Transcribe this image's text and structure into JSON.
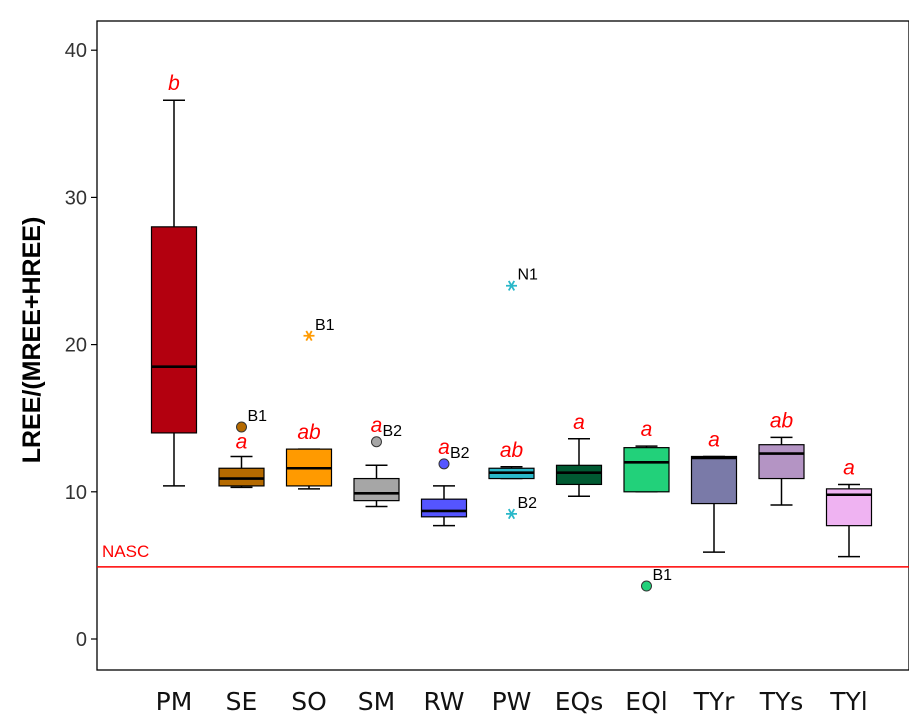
{
  "chart_data": {
    "type": "box",
    "ylabel": "LREE/(MREE+HREE)",
    "ylim": [
      -2,
      42
    ],
    "yticks": [
      0,
      10,
      20,
      30,
      40
    ],
    "ytick_labels": [
      "0",
      "10",
      "20",
      "30",
      "40"
    ],
    "grid": false,
    "reference_line": {
      "label": "NASC",
      "value": 4.9,
      "color": "#ff0000"
    },
    "boxes": [
      {
        "category": "PM",
        "min": 10.4,
        "q1": 14.0,
        "median": 18.5,
        "q3": 28.0,
        "max": 36.6,
        "color": "#b3000f",
        "letter": "b",
        "outliers": []
      },
      {
        "category": "SE",
        "min": 10.3,
        "q1": 10.4,
        "median": 10.9,
        "q3": 11.6,
        "max": 12.4,
        "color": "#b56a00",
        "letter": "a",
        "outliers": [
          {
            "value": 14.4,
            "label": "B1",
            "marker": "circle"
          }
        ]
      },
      {
        "category": "SO",
        "min": 10.2,
        "q1": 10.4,
        "median": 11.6,
        "q3": 12.9,
        "max": 12.9,
        "color": "#ff9a00",
        "letter": "ab",
        "outliers": [
          {
            "value": 20.6,
            "label": "B1",
            "marker": "star"
          }
        ]
      },
      {
        "category": "SM",
        "min": 9.0,
        "q1": 9.4,
        "median": 9.9,
        "q3": 10.9,
        "max": 11.8,
        "color": "#a6a6a6",
        "letter": "a",
        "outliers": [
          {
            "value": 13.4,
            "label": "B2",
            "marker": "circle"
          }
        ]
      },
      {
        "category": "RW",
        "min": 7.7,
        "q1": 8.3,
        "median": 8.7,
        "q3": 9.5,
        "max": 10.4,
        "color": "#5555ff",
        "letter": "a",
        "outliers": [
          {
            "value": 11.9,
            "label": "B2",
            "marker": "circle"
          }
        ]
      },
      {
        "category": "PW",
        "min": 10.9,
        "q1": 10.9,
        "median": 11.3,
        "q3": 11.6,
        "max": 11.7,
        "color": "#2ab8c9",
        "letter": "ab",
        "outliers": [
          {
            "value": 24.0,
            "label": "N1",
            "marker": "star"
          },
          {
            "value": 8.5,
            "label": "B2",
            "marker": "star"
          }
        ]
      },
      {
        "category": "EQs",
        "min": 9.7,
        "q1": 10.5,
        "median": 11.3,
        "q3": 11.8,
        "max": 13.6,
        "color": "#005a32",
        "letter": "a",
        "outliers": []
      },
      {
        "category": "EQl",
        "min": 10.0,
        "q1": 10.0,
        "median": 12.0,
        "q3": 13.0,
        "max": 13.1,
        "color": "#22d17a",
        "letter": "a",
        "outliers": [
          {
            "value": 3.6,
            "label": "B1",
            "marker": "circle"
          }
        ]
      },
      {
        "category": "TYr",
        "min": 5.9,
        "q1": 9.2,
        "median": 12.3,
        "q3": 12.4,
        "max": 12.4,
        "color": "#7a7aa8",
        "letter": "a",
        "outliers": []
      },
      {
        "category": "TYs",
        "min": 9.1,
        "q1": 10.9,
        "median": 12.6,
        "q3": 13.2,
        "max": 13.7,
        "color": "#b494c4",
        "letter": "ab",
        "outliers": []
      },
      {
        "category": "TYl",
        "min": 5.6,
        "q1": 7.7,
        "median": 9.8,
        "q3": 10.2,
        "max": 10.5,
        "color": "#efb3f2",
        "letter": "a",
        "outliers": []
      }
    ]
  }
}
